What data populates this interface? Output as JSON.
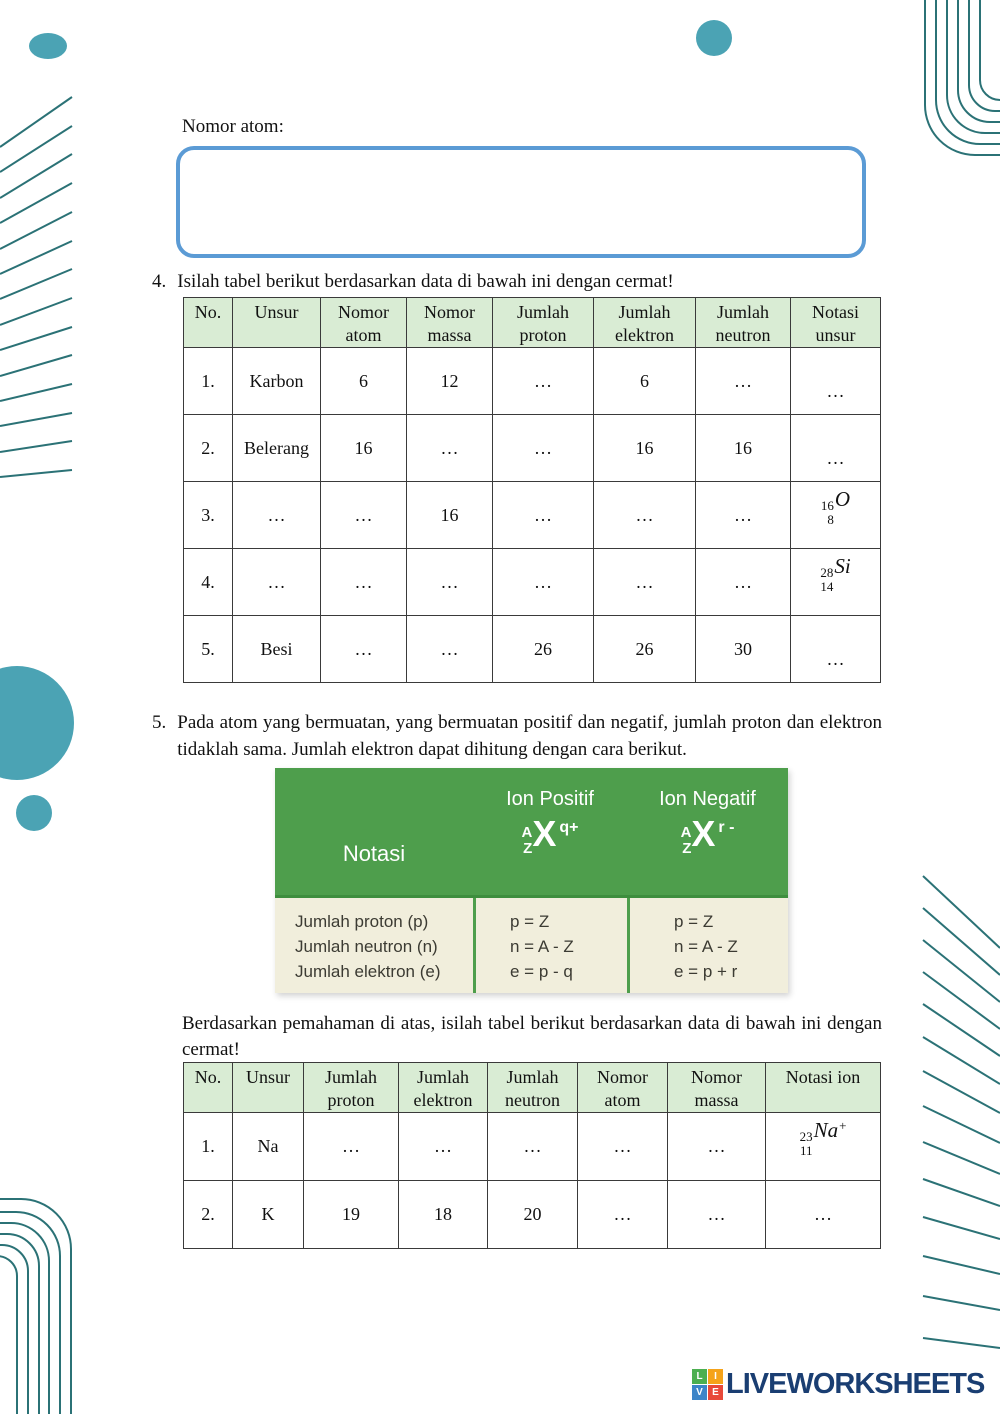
{
  "colors": {
    "teal_fill": "#4BA3B4",
    "teal_line": "#2B7276",
    "answer_box_border": "#5B9BD5",
    "table_header_bg": "#D9ECD4",
    "ion_box_green": "#4E9E4C",
    "ion_box_cream": "#F1EEDC",
    "logo_navy": "#1A3E72",
    "logo_square_l": "#4CAF50",
    "logo_square_i": "#F5A31A",
    "logo_square_v": "#3D85C8",
    "logo_square_e": "#E8493A"
  },
  "top": {
    "nomor_atom_label": "Nomor atom:"
  },
  "q4": {
    "number": "4.",
    "text": "Isilah tabel berikut berdasarkan data di bawah ini dengan cermat!"
  },
  "table1": {
    "headers": [
      "No.",
      "Unsur",
      "Nomor atom",
      "Nomor massa",
      "Jumlah proton",
      "Jumlah elektron",
      "Jumlah neutron",
      "Notasi unsur"
    ],
    "rows": [
      [
        "1.",
        "Karbon",
        "6",
        "12",
        "…",
        "6",
        "…",
        "…"
      ],
      [
        "2.",
        "Belerang",
        "16",
        "…",
        "…",
        "16",
        "16",
        "…"
      ],
      [
        "3.",
        "…",
        "…",
        "16",
        "…",
        "…",
        "…",
        {
          "sup": "16",
          "sub": "8",
          "sym": "O",
          "charge": ""
        }
      ],
      [
        "4.",
        "…",
        "…",
        "…",
        "…",
        "…",
        "…",
        {
          "sup": "28",
          "sub": "14",
          "sym": "Si",
          "charge": ""
        }
      ],
      [
        "5.",
        "Besi",
        "…",
        "…",
        "26",
        "26",
        "30",
        "…"
      ]
    ]
  },
  "q5": {
    "number": "5.",
    "text": "Pada atom yang bermuatan, yang bermuatan positif dan negatif, jumlah proton dan elektron tidaklah sama. Jumlah elektron dapat dihitung dengan cara berikut."
  },
  "ion_box": {
    "notasi_label": "Notasi",
    "positive": {
      "title": "Ion Positif",
      "pre_sup": "A",
      "pre_sub": "Z",
      "symbol": "X",
      "charge": "q+"
    },
    "negative": {
      "title": "Ion Negatif",
      "pre_sup": "A",
      "pre_sub": "Z",
      "symbol": "X",
      "charge": "r -"
    },
    "left_rows": [
      "Jumlah proton (p)",
      "Jumlah neutron (n)",
      "Jumlah elektron (e)"
    ],
    "positive_rows": [
      "p = Z",
      "n = A - Z",
      "e = p - q"
    ],
    "negative_rows": [
      "p = Z",
      "n = A - Z",
      "e = p + r"
    ]
  },
  "q5b": {
    "text": "Berdasarkan pemahaman di atas, isilah tabel berikut berdasarkan data di bawah ini dengan cermat!"
  },
  "table2": {
    "headers": [
      "No.",
      "Unsur",
      "Jumlah proton",
      "Jumlah elektron",
      "Jumlah neutron",
      "Nomor atom",
      "Nomor massa",
      "Notasi ion"
    ],
    "rows": [
      [
        "1.",
        "Na",
        "…",
        "…",
        "…",
        "…",
        "…",
        {
          "sup": "23",
          "sub": "11",
          "sym": "Na",
          "charge": "+"
        }
      ],
      [
        "2.",
        "K",
        "19",
        "18",
        "20",
        "…",
        "…",
        "…"
      ]
    ]
  },
  "footer": {
    "logo_letters": [
      "L",
      "I",
      "V",
      "E"
    ],
    "logo_text": "LIVEWORKSHEETS"
  }
}
